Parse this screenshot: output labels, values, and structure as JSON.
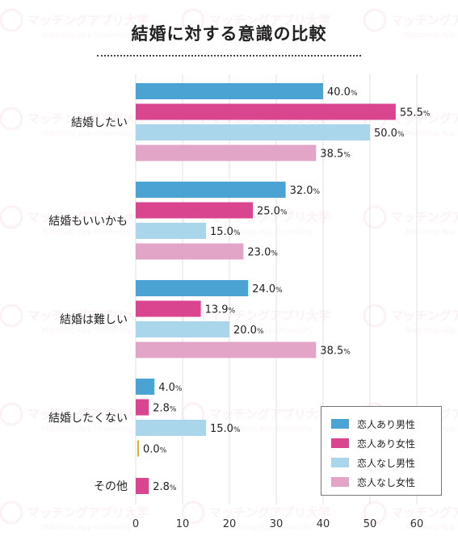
{
  "watermark": {
    "brand": "マッチングアプリ大学",
    "sub": "Matching App University"
  },
  "chart_data": {
    "type": "bar",
    "orientation": "horizontal",
    "title": "結婚に対する意識の比較",
    "categories": [
      "結婚したい",
      "結婚もいいかも",
      "結婚は難しい",
      "結婚したくない",
      "その他"
    ],
    "series": [
      {
        "name": "恋人あり男性",
        "color": "#4aa3d2",
        "values": [
          40.0,
          32.0,
          24.0,
          4.0,
          null
        ]
      },
      {
        "name": "恋人あり女性",
        "color": "#d9468f",
        "values": [
          55.5,
          25.0,
          13.9,
          2.8,
          2.8
        ]
      },
      {
        "name": "恋人なし男性",
        "color": "#a9d6ea",
        "values": [
          50.0,
          15.0,
          20.0,
          15.0,
          null
        ]
      },
      {
        "name": "恋人なし女性",
        "color": "#e2a5c7",
        "values": [
          38.5,
          23.0,
          38.5,
          0.0,
          null
        ]
      }
    ],
    "value_labels": [
      [
        "40.0%",
        "55.5%",
        "50.0%",
        "38.5%"
      ],
      [
        "32.0%",
        "25.0%",
        "15.0%",
        "23.0%"
      ],
      [
        "24.0%",
        "13.9%",
        "20.0%",
        "38.5%"
      ],
      [
        "4.0%",
        "2.8%",
        "15.0%",
        "0.0%"
      ],
      [
        null,
        "2.8%",
        null,
        null
      ]
    ],
    "zero_bar_color": "#e0b21e",
    "xlim": [
      0,
      60
    ],
    "xticks": [
      0,
      10,
      20,
      30,
      40,
      50,
      60
    ],
    "grid": true,
    "legend_position": "bottom-right"
  }
}
